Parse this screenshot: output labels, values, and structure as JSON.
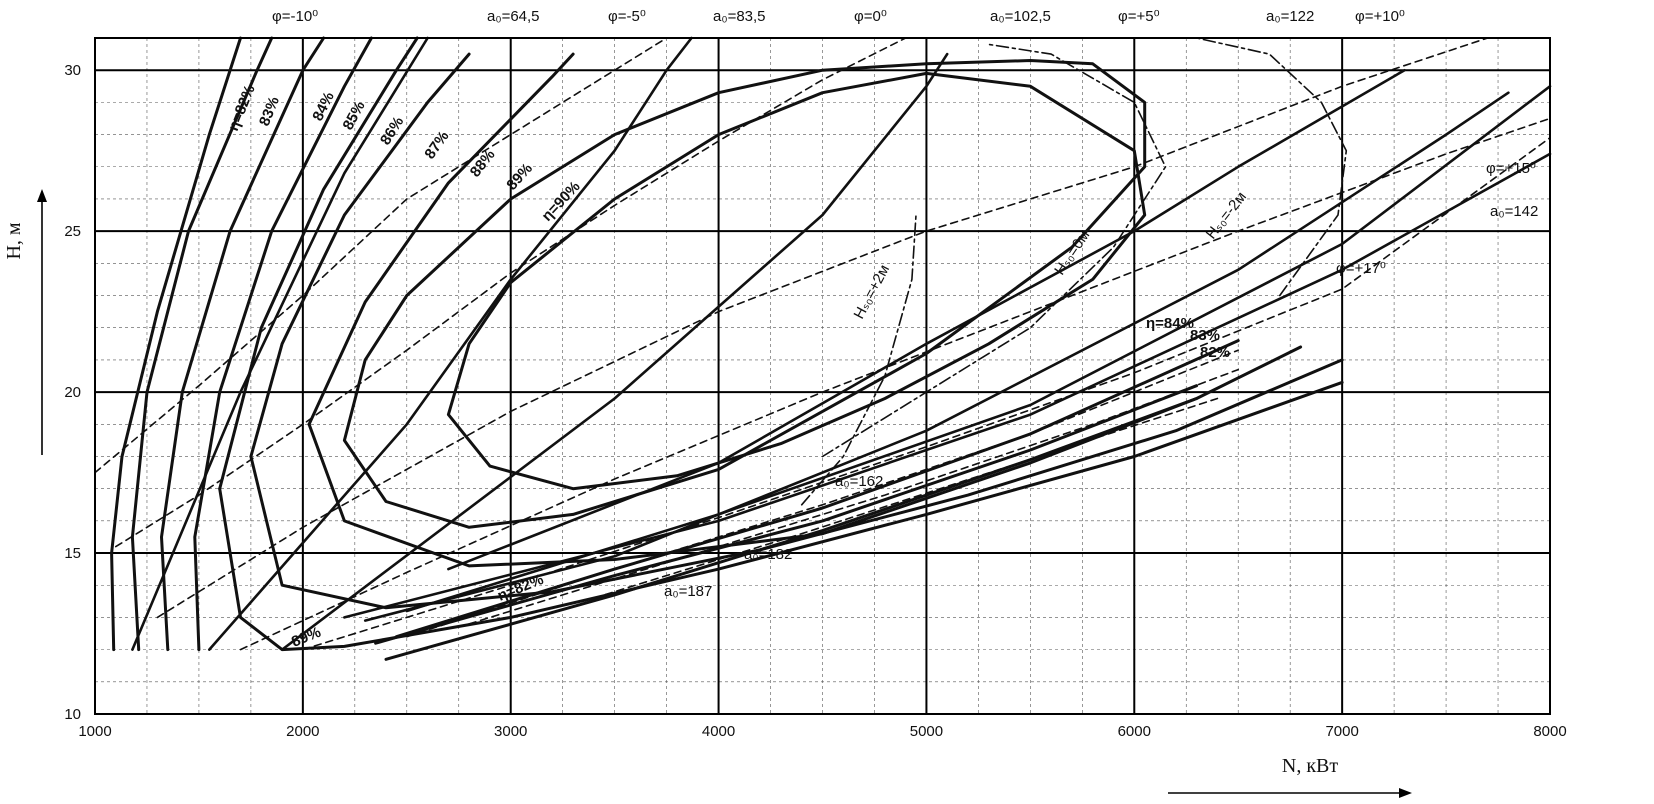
{
  "chart_data": {
    "type": "line",
    "xlabel": "N, кВт",
    "ylabel": "H, м",
    "xlim": [
      1000,
      8000
    ],
    "ylim": [
      10,
      31
    ],
    "x_ticks": [
      {
        "value": 1000,
        "label": "1000"
      },
      {
        "value": 2000,
        "label": "2000"
      },
      {
        "value": 3000,
        "label": "3000"
      },
      {
        "value": 4000,
        "label": "4000"
      },
      {
        "value": 5000,
        "label": "5000"
      },
      {
        "value": 6000,
        "label": "6000"
      },
      {
        "value": 7000,
        "label": "7000"
      },
      {
        "value": 8000,
        "label": "8000"
      }
    ],
    "y_ticks": [
      {
        "value": 10,
        "label": "10"
      },
      {
        "value": 15,
        "label": "15"
      },
      {
        "value": 20,
        "label": "20"
      },
      {
        "value": 25,
        "label": "25"
      },
      {
        "value": 30,
        "label": "30"
      }
    ],
    "grid": true,
    "efficiency_label_style": "bold",
    "series": [
      {
        "kind": "efficiency",
        "label": "η=90%",
        "points": [
          [
            3000,
            23.4
          ],
          [
            3500,
            26.0
          ],
          [
            4000,
            28.0
          ],
          [
            4500,
            29.3
          ],
          [
            5000,
            29.9
          ],
          [
            5500,
            29.5
          ],
          [
            6000,
            27.5
          ],
          [
            6050,
            25.5
          ],
          [
            5800,
            23.5
          ],
          [
            5300,
            21.5
          ],
          [
            4800,
            19.8
          ],
          [
            4300,
            18.4
          ],
          [
            3800,
            17.4
          ],
          [
            3300,
            17.0
          ],
          [
            2900,
            17.7
          ],
          [
            2700,
            19.3
          ],
          [
            2800,
            21.5
          ],
          [
            3000,
            23.4
          ]
        ]
      },
      {
        "kind": "efficiency",
        "label": "89%",
        "points": [
          [
            2500,
            23.0
          ],
          [
            3000,
            26.0
          ],
          [
            3500,
            28.0
          ],
          [
            4000,
            29.3
          ],
          [
            4500,
            30.0
          ],
          [
            5000,
            30.2
          ],
          [
            5500,
            30.3
          ],
          [
            5800,
            30.2
          ],
          [
            6050,
            29.0
          ],
          [
            6050,
            27.0
          ],
          [
            5700,
            24.5
          ],
          [
            5000,
            21.2
          ],
          [
            4000,
            17.6
          ],
          [
            3300,
            16.2
          ],
          [
            2800,
            15.8
          ],
          [
            2400,
            16.6
          ],
          [
            2200,
            18.5
          ],
          [
            2300,
            21.0
          ],
          [
            2500,
            23.0
          ]
        ]
      },
      {
        "kind": "efficiency",
        "label": "88%",
        "points": [
          [
            2030,
            19.0
          ],
          [
            2300,
            22.8
          ],
          [
            2700,
            26.5
          ],
          [
            3200,
            29.8
          ],
          [
            3300,
            30.5
          ]
        ]
      },
      {
        "kind": "efficiency",
        "label": "88%",
        "points": [
          [
            2030,
            19.0
          ],
          [
            2200,
            16.0
          ],
          [
            2800,
            14.6
          ],
          [
            3500,
            14.8
          ],
          [
            4500,
            15.6
          ],
          [
            5500,
            17.8
          ],
          [
            6300,
            19.8
          ],
          [
            6800,
            21.4
          ]
        ]
      },
      {
        "kind": "efficiency",
        "label": "87%",
        "points": [
          [
            1750,
            18.0
          ],
          [
            1900,
            21.5
          ],
          [
            2200,
            25.5
          ],
          [
            2600,
            29.0
          ],
          [
            2800,
            30.5
          ]
        ]
      },
      {
        "kind": "efficiency",
        "label": "87%",
        "points": [
          [
            1750,
            18.0
          ],
          [
            1900,
            14.0
          ],
          [
            2400,
            13.3
          ],
          [
            3200,
            13.8
          ],
          [
            4200,
            15.1
          ],
          [
            5200,
            16.8
          ],
          [
            6200,
            18.8
          ],
          [
            7000,
            21.0
          ]
        ]
      },
      {
        "kind": "efficiency",
        "label": "86%",
        "points": [
          [
            1600,
            17.0
          ],
          [
            1800,
            22.0
          ],
          [
            2100,
            26.3
          ],
          [
            2450,
            30.0
          ],
          [
            2550,
            31.0
          ]
        ]
      },
      {
        "kind": "efficiency",
        "label": "86%",
        "points": [
          [
            1600,
            17.0
          ],
          [
            1700,
            13.0
          ],
          [
            1900,
            12.0
          ],
          [
            2200,
            12.1
          ],
          [
            3000,
            13.0
          ],
          [
            4000,
            14.5
          ],
          [
            5000,
            16.2
          ],
          [
            6000,
            18.0
          ],
          [
            7000,
            20.3
          ]
        ]
      },
      {
        "kind": "efficiency",
        "label": "85%",
        "points": [
          [
            1500,
            12.0
          ],
          [
            1480,
            15.5
          ],
          [
            1600,
            20.0
          ],
          [
            1850,
            25.0
          ],
          [
            2200,
            29.5
          ],
          [
            2330,
            31.0
          ]
        ]
      },
      {
        "kind": "efficiency",
        "label": "84%",
        "points": [
          [
            1350,
            12.0
          ],
          [
            1320,
            15.5
          ],
          [
            1420,
            20.0
          ],
          [
            1650,
            25.0
          ],
          [
            2000,
            30.0
          ],
          [
            2100,
            31.0
          ]
        ]
      },
      {
        "kind": "efficiency",
        "label": "83%",
        "points": [
          [
            1210,
            12.0
          ],
          [
            1180,
            15.5
          ],
          [
            1250,
            20.0
          ],
          [
            1450,
            25.0
          ],
          [
            1780,
            30.0
          ],
          [
            1850,
            31.0
          ]
        ]
      },
      {
        "kind": "efficiency",
        "label": "η=82%",
        "points": [
          [
            1090,
            12.0
          ],
          [
            1080,
            15.0
          ],
          [
            1130,
            18.0
          ],
          [
            1300,
            22.5
          ],
          [
            1550,
            28.0
          ],
          [
            1700,
            31.0
          ]
        ]
      },
      {
        "kind": "efficiency",
        "label": "η=84%",
        "points": [
          [
            2450,
            12.4
          ],
          [
            3500,
            14.5
          ],
          [
            4500,
            16.4
          ],
          [
            5500,
            18.7
          ],
          [
            6500,
            21.6
          ]
        ]
      },
      {
        "kind": "efficiency",
        "label": "83%",
        "points": [
          [
            2350,
            12.2
          ],
          [
            3500,
            14.3
          ],
          [
            4500,
            16.0
          ],
          [
            5500,
            18.2
          ],
          [
            6300,
            20.2
          ]
        ]
      },
      {
        "kind": "efficiency",
        "label": "η=82%",
        "points": [
          [
            2400,
            11.7
          ],
          [
            3500,
            13.7
          ],
          [
            4500,
            15.7
          ],
          [
            5500,
            17.9
          ],
          [
            6300,
            19.8
          ]
        ]
      },
      {
        "kind": "blade_angle",
        "label": "φ=-10⁰",
        "points": [
          [
            1180,
            12.0
          ],
          [
            1700,
            20.0
          ],
          [
            2200,
            26.8
          ],
          [
            2600,
            31.0
          ]
        ]
      },
      {
        "kind": "blade_angle",
        "label": "φ=-5⁰",
        "points": [
          [
            1550,
            12.0
          ],
          [
            2500,
            19.0
          ],
          [
            3000,
            23.5
          ],
          [
            3500,
            27.5
          ],
          [
            3750,
            30.0
          ],
          [
            3870,
            31.0
          ]
        ]
      },
      {
        "kind": "blade_angle",
        "label": "φ=0⁰",
        "points": [
          [
            1900,
            12.0
          ],
          [
            3500,
            19.8
          ],
          [
            4500,
            25.5
          ],
          [
            5000,
            29.5
          ],
          [
            5100,
            30.5
          ]
        ]
      },
      {
        "kind": "blade_angle",
        "label": "φ=+5⁰",
        "points": [
          [
            2700,
            14.5
          ],
          [
            4000,
            17.8
          ],
          [
            5000,
            21.5
          ],
          [
            6000,
            25.0
          ],
          [
            6500,
            27.0
          ],
          [
            7300,
            30.0
          ]
        ]
      },
      {
        "kind": "blade_angle",
        "label": "φ=+10⁰",
        "points": [
          [
            2300,
            12.9
          ],
          [
            3500,
            14.9
          ],
          [
            5000,
            18.8
          ],
          [
            6500,
            23.8
          ],
          [
            7500,
            28.0
          ],
          [
            7800,
            29.3
          ]
        ]
      },
      {
        "kind": "blade_angle",
        "label": "φ=+15⁰",
        "points": [
          [
            2500,
            13.2
          ],
          [
            4000,
            16.2
          ],
          [
            5500,
            19.6
          ],
          [
            7000,
            24.6
          ],
          [
            8000,
            29.5
          ]
        ]
      },
      {
        "kind": "blade_angle",
        "label": "φ=+17⁰",
        "points": [
          [
            2200,
            13.0
          ],
          [
            4000,
            16.0
          ],
          [
            5500,
            19.3
          ],
          [
            7000,
            23.8
          ],
          [
            8000,
            27.4
          ]
        ]
      },
      {
        "kind": "opening",
        "label": "a₀=64,5",
        "points": [
          [
            1000,
            17.5
          ],
          [
            1500,
            20.2
          ],
          [
            2000,
            23.0
          ],
          [
            2500,
            26.0
          ],
          [
            3000,
            28.0
          ],
          [
            3500,
            30.0
          ],
          [
            3750,
            31.0
          ]
        ]
      },
      {
        "kind": "opening",
        "label": "a₀=83,5",
        "points": [
          [
            1100,
            15.2
          ],
          [
            1500,
            16.8
          ],
          [
            2000,
            19.0
          ],
          [
            2500,
            21.3
          ],
          [
            3000,
            23.7
          ],
          [
            3500,
            25.8
          ],
          [
            4000,
            27.8
          ],
          [
            4500,
            29.7
          ],
          [
            4900,
            31.0
          ]
        ]
      },
      {
        "kind": "opening",
        "label": "a₀=102,5",
        "points": [
          [
            1300,
            13.0
          ],
          [
            2000,
            15.8
          ],
          [
            3000,
            19.4
          ],
          [
            4000,
            22.5
          ],
          [
            5000,
            25.0
          ],
          [
            6000,
            27.0
          ],
          [
            7000,
            29.5
          ],
          [
            7700,
            31.0
          ]
        ]
      },
      {
        "kind": "opening",
        "label": "a₀=122",
        "points": [
          [
            1700,
            12.0
          ],
          [
            2500,
            14.4
          ],
          [
            3500,
            17.3
          ],
          [
            4500,
            20.0
          ],
          [
            5500,
            22.5
          ],
          [
            6500,
            25.0
          ],
          [
            7500,
            27.4
          ],
          [
            8000,
            28.5
          ]
        ]
      },
      {
        "kind": "opening",
        "label": "a₀=142",
        "points": [
          [
            2000,
            12.0
          ],
          [
            3000,
            14.0
          ],
          [
            4000,
            16.1
          ],
          [
            5000,
            18.3
          ],
          [
            6000,
            20.6
          ],
          [
            7000,
            23.2
          ],
          [
            8000,
            27.9
          ]
        ]
      },
      {
        "kind": "opening",
        "label": "a₀=162",
        "points": [
          [
            2500,
            12.4
          ],
          [
            3500,
            14.5
          ],
          [
            4500,
            16.5
          ],
          [
            5500,
            18.7
          ],
          [
            6500,
            21.3
          ]
        ]
      },
      {
        "kind": "opening",
        "label": "a₀=182",
        "points": [
          [
            2800,
            12.8
          ],
          [
            3800,
            14.8
          ],
          [
            4800,
            16.8
          ],
          [
            5800,
            19.0
          ],
          [
            6500,
            20.7
          ]
        ]
      },
      {
        "kind": "opening",
        "label": "a₀=187",
        "points": [
          [
            3400,
            13.6
          ],
          [
            4400,
            15.6
          ],
          [
            5400,
            17.7
          ],
          [
            6400,
            19.8
          ]
        ]
      },
      {
        "kind": "suction_head",
        "label": "Hₛ₀=+2м",
        "points": [
          [
            4400,
            16.5
          ],
          [
            4600,
            18.0
          ],
          [
            4800,
            20.5
          ],
          [
            4930,
            23.5
          ],
          [
            4950,
            25.5
          ]
        ]
      },
      {
        "kind": "suction_head",
        "label": "Hₛ₀=0м",
        "points": [
          [
            4500,
            18.0
          ],
          [
            5000,
            20.0
          ],
          [
            5500,
            22.0
          ],
          [
            5900,
            24.5
          ],
          [
            6150,
            27.0
          ],
          [
            6000,
            29.0
          ],
          [
            5600,
            30.5
          ],
          [
            5300,
            30.8
          ]
        ]
      },
      {
        "kind": "suction_head",
        "label": "Hₛ₀=-2м",
        "points": [
          [
            6700,
            23.0
          ],
          [
            6980,
            25.5
          ],
          [
            7020,
            27.5
          ],
          [
            6900,
            29.0
          ],
          [
            6650,
            30.5
          ],
          [
            6300,
            31.0
          ]
        ]
      }
    ],
    "annotations": [
      {
        "text": "φ=-10⁰"
      },
      {
        "text": "a₀=64,5"
      },
      {
        "text": "φ=-5⁰"
      },
      {
        "text": "a₀=83,5"
      },
      {
        "text": "φ=0⁰"
      },
      {
        "text": "a₀=102,5"
      },
      {
        "text": "φ=+5⁰"
      },
      {
        "text": "a₀=122"
      },
      {
        "text": "φ=+10⁰"
      },
      {
        "text": "φ=+15⁰"
      },
      {
        "text": "a₀=142"
      },
      {
        "text": "φ=+17⁰"
      },
      {
        "text": "η=82%"
      },
      {
        "text": "83%"
      },
      {
        "text": "84%"
      },
      {
        "text": "85%"
      },
      {
        "text": "86%"
      },
      {
        "text": "87%"
      },
      {
        "text": "88%"
      },
      {
        "text": "89%"
      },
      {
        "text": "η=90%"
      },
      {
        "text": "Hₛ₀=+2м"
      },
      {
        "text": "Hₛ₀=0м"
      },
      {
        "text": "Hₛ₀=-2м"
      },
      {
        "text": "η=84%"
      },
      {
        "text": "83%"
      },
      {
        "text": "82%"
      },
      {
        "text": "a₀=162"
      },
      {
        "text": "a₀=182"
      },
      {
        "text": "a₀=187"
      },
      {
        "text": "η=82%"
      },
      {
        "text": "89%"
      }
    ]
  }
}
